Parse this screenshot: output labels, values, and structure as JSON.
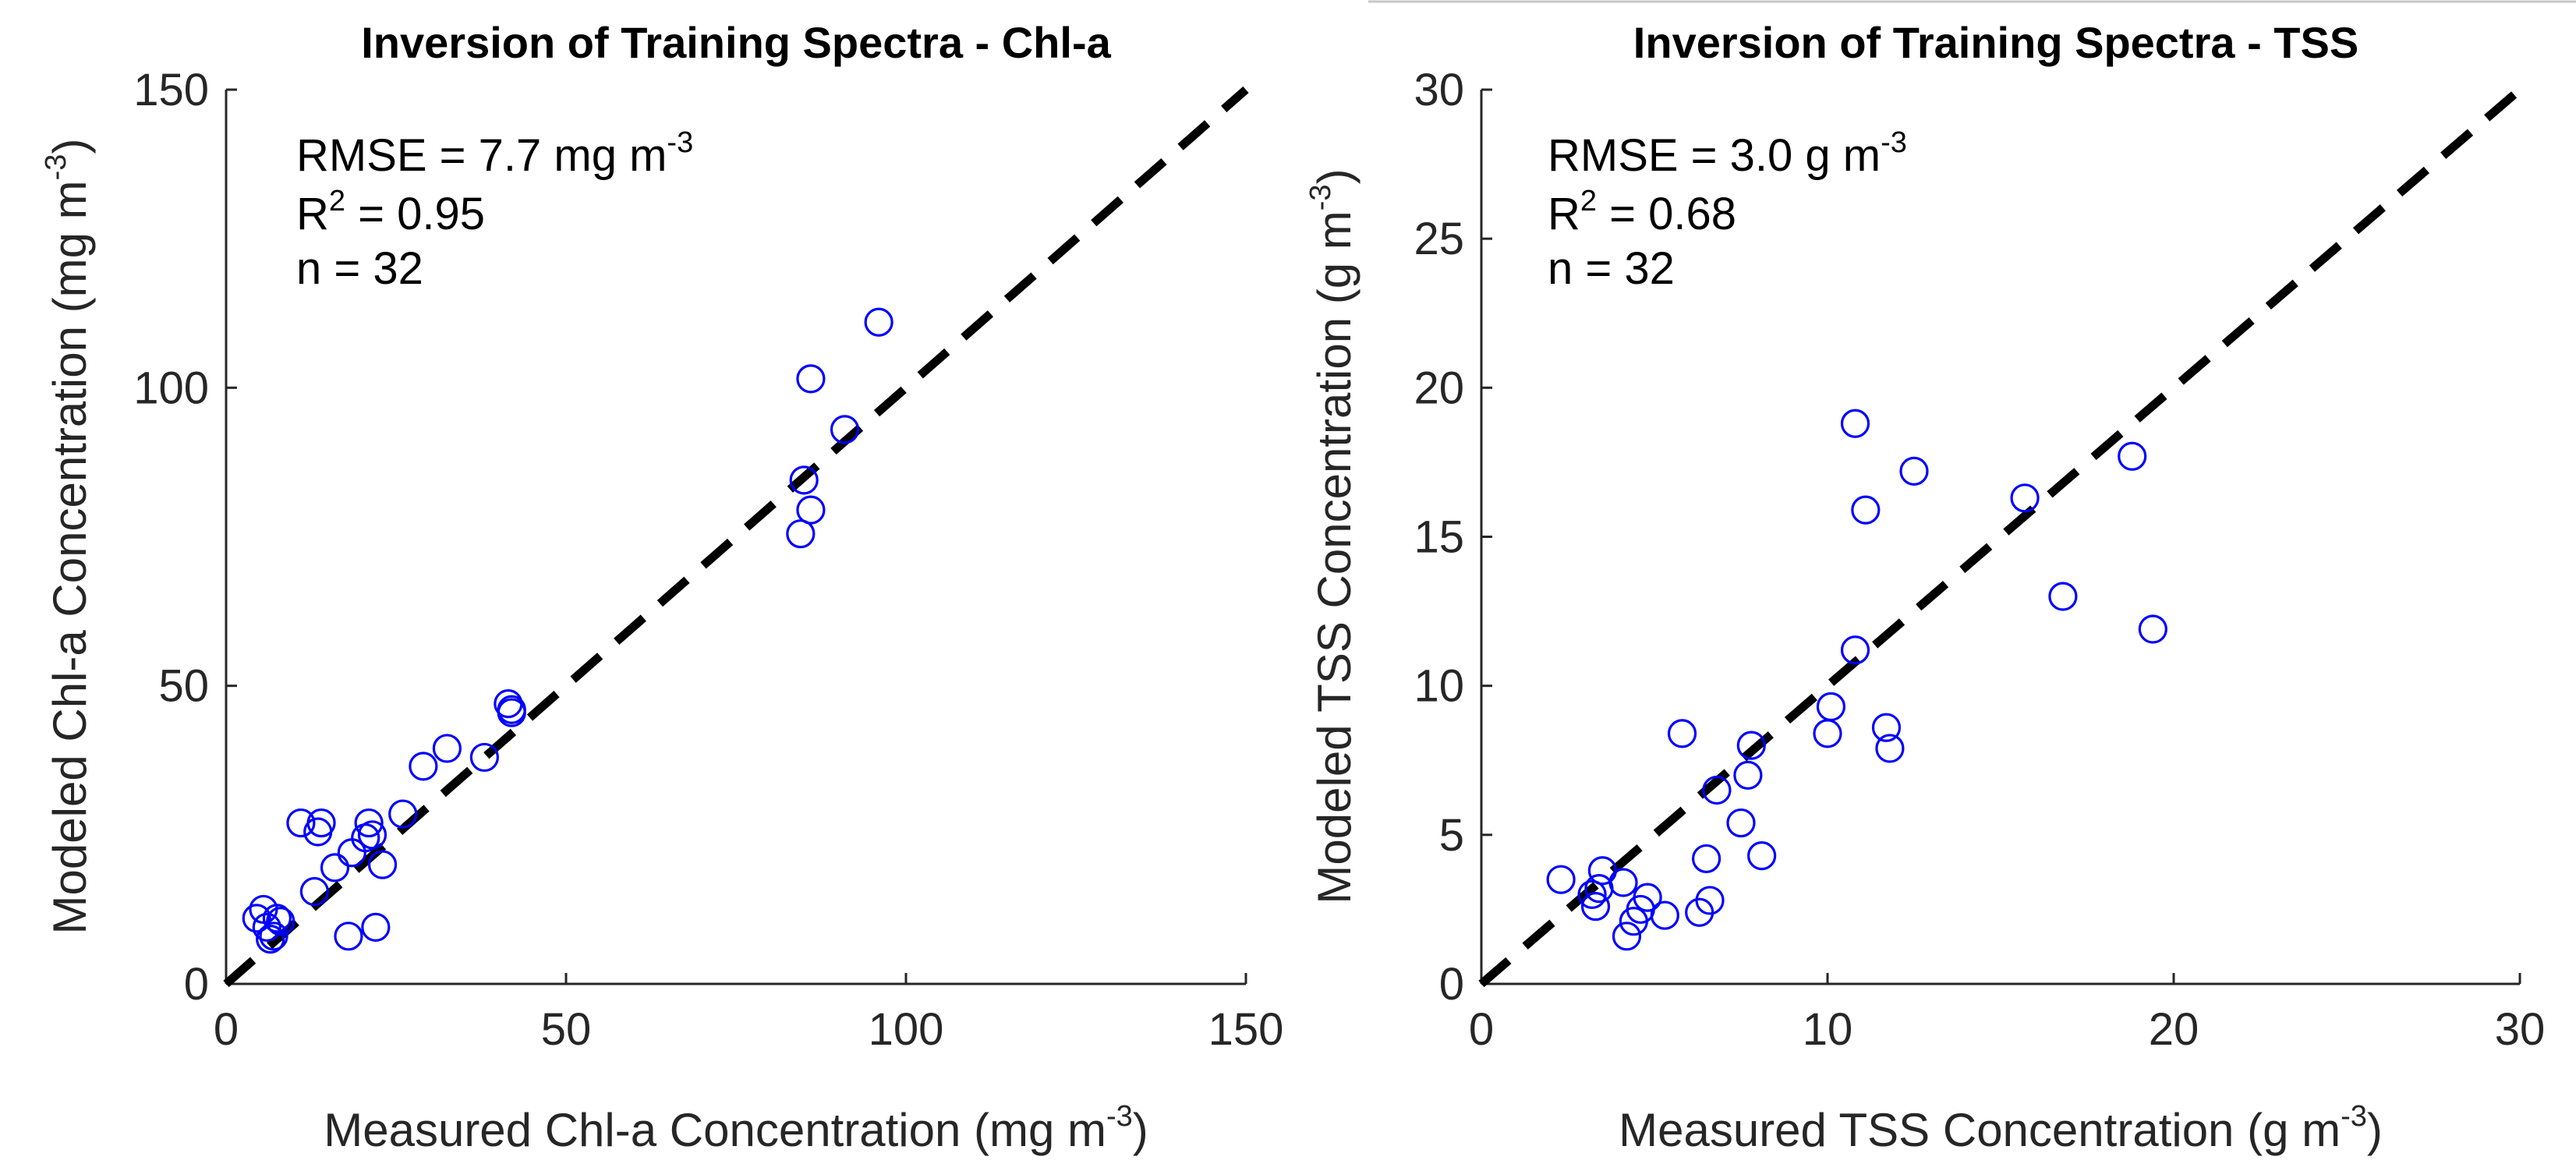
{
  "chart_data": [
    {
      "type": "scatter",
      "title": "Inversion of Training Spectra - Chl-a",
      "xlabel_main": "Measured Chl-a Concentration (mg m",
      "xlabel_sup": "-3",
      "xlabel_end": ")",
      "ylabel_main": "Modeled Chl-a Concentration (mg m",
      "ylabel_sup": "-3",
      "ylabel_end": ")",
      "xlim": [
        0,
        150
      ],
      "ylim": [
        0,
        150
      ],
      "xticks": [
        0,
        50,
        100,
        150
      ],
      "yticks": [
        0,
        50,
        100,
        150
      ],
      "xtick_labels": [
        "0",
        "50",
        "100",
        "150"
      ],
      "ytick_labels": [
        "0",
        "50",
        "100",
        "150"
      ],
      "annotation": {
        "line1_main": "RMSE = 7.7 mg m",
        "line1_sup": "-3",
        "line2_pre": "R",
        "line2_sup": "2",
        "line2_post": " = 0.95",
        "line3": "n = 32"
      },
      "reference_line": "1:1",
      "marker": "open-circle",
      "grid": false,
      "series": [
        {
          "color": "#0000ff",
          "x": [
            4.5,
            5.5,
            6.0,
            6.5,
            7.0,
            7.5,
            8.0,
            11.0,
            13.0,
            13.5,
            14.0,
            16.0,
            18.0,
            18.5,
            20.5,
            21.0,
            21.5,
            22.0,
            23.0,
            26.0,
            29.0,
            32.5,
            38.0,
            41.5,
            42.0,
            42.0,
            84.5,
            85.0,
            86.0,
            86.0,
            91.0,
            96.0
          ],
          "y": [
            11.0,
            12.5,
            9.5,
            7.5,
            8.0,
            11.0,
            10.5,
            27.0,
            15.5,
            25.5,
            27.0,
            19.5,
            8.0,
            22.0,
            24.5,
            27.0,
            25.0,
            9.5,
            20.0,
            28.5,
            36.5,
            39.5,
            38.0,
            47.0,
            46.0,
            45.5,
            75.5,
            84.5,
            101.5,
            79.5,
            93.0,
            111.0
          ]
        }
      ]
    },
    {
      "type": "scatter",
      "title": "Inversion of Training Spectra - TSS",
      "xlabel_main": "Measured TSS Concentration (g m",
      "xlabel_sup": "-3",
      "xlabel_end": ")",
      "ylabel_main": "Modeled TSS Concentration (g m",
      "ylabel_sup": "-3",
      "ylabel_end": ")",
      "xlim": [
        0,
        30
      ],
      "ylim": [
        0,
        30
      ],
      "xticks": [
        0,
        10,
        20,
        30
      ],
      "yticks": [
        0,
        5,
        10,
        15,
        20,
        25,
        30
      ],
      "xtick_labels": [
        "0",
        "10",
        "20",
        "30"
      ],
      "ytick_labels": [
        "0",
        "5",
        "10",
        "15",
        "20",
        "25",
        "30"
      ],
      "annotation": {
        "line1_main": "RMSE = 3.0 g m",
        "line1_sup": "-3",
        "line2_pre": "R",
        "line2_sup": "2",
        "line2_post": " = 0.68",
        "line3": "n = 32"
      },
      "reference_line": "1:1",
      "marker": "open-circle",
      "grid": false,
      "series": [
        {
          "color": "#0000ff",
          "x": [
            2.3,
            3.2,
            3.3,
            3.4,
            3.5,
            4.2,
            4.4,
            4.6,
            4.8,
            5.3,
            5.8,
            6.3,
            6.5,
            6.6,
            6.8,
            7.5,
            7.7,
            7.8,
            8.1,
            10.0,
            10.1,
            10.8,
            10.8,
            11.1,
            11.7,
            11.8,
            12.5,
            15.7,
            16.8,
            18.8,
            19.4,
            4.1
          ],
          "y": [
            3.5,
            3.0,
            2.6,
            3.2,
            3.8,
            1.6,
            2.1,
            2.5,
            2.9,
            2.3,
            8.4,
            2.4,
            4.2,
            2.8,
            6.5,
            5.4,
            7.0,
            8.0,
            4.3,
            8.4,
            9.3,
            18.8,
            11.2,
            15.9,
            8.6,
            7.9,
            17.2,
            16.3,
            13.0,
            17.7,
            11.9,
            3.4
          ]
        }
      ]
    }
  ]
}
